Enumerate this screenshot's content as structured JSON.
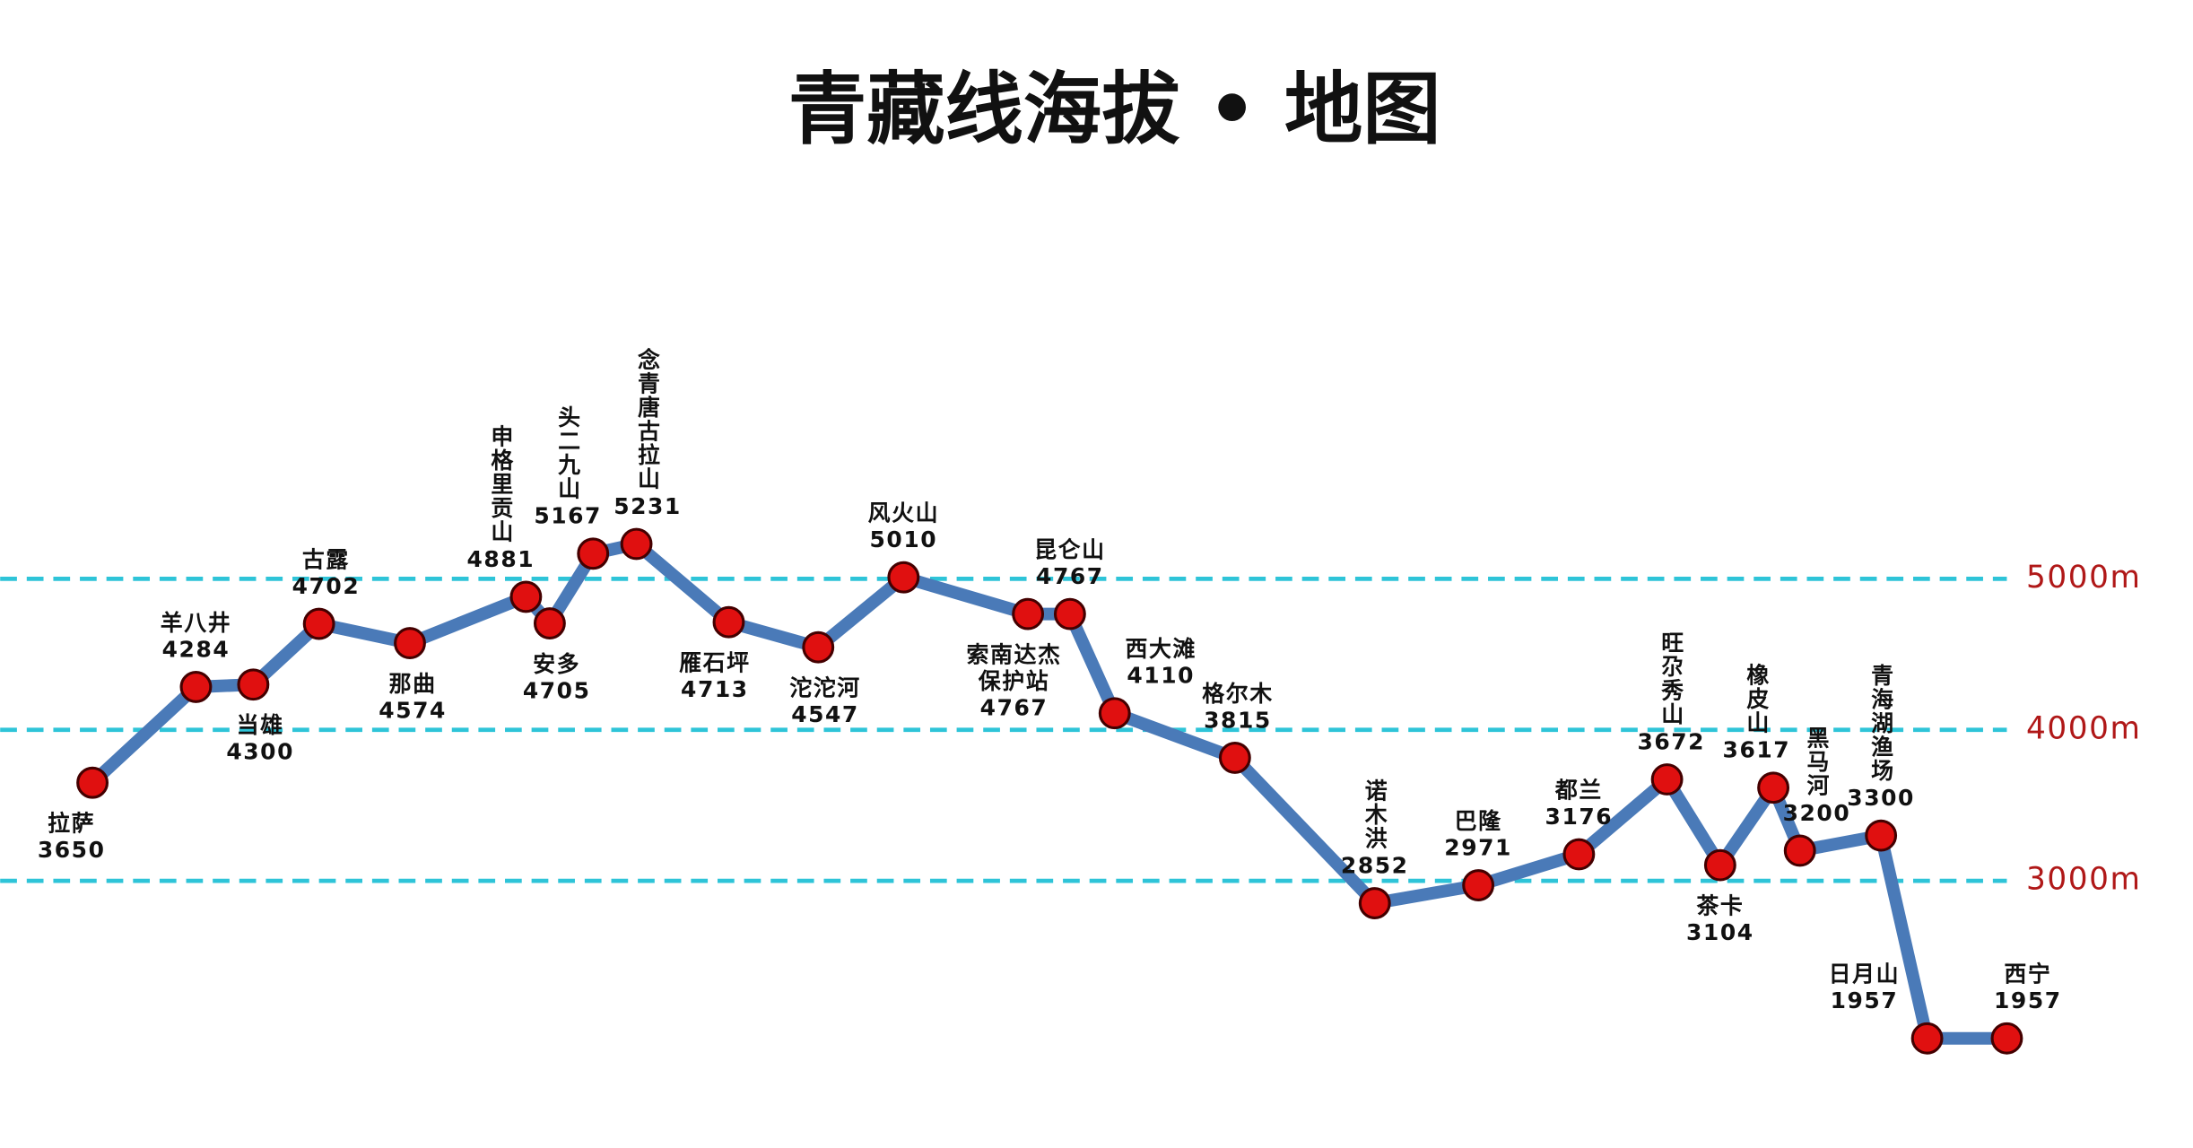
{
  "chart_data": {
    "type": "line",
    "title": "青藏线海拔 • 地图",
    "categories": [
      "拉萨",
      "羊八井",
      "当雄",
      "古露",
      "那曲",
      "申格里贡山",
      "安多",
      "头二九山",
      "念青唐古拉山",
      "雁石坪",
      "沱沱河",
      "风火山",
      "索南达杰保护站",
      "昆仑山",
      "西大滩",
      "格尔木",
      "诺木洪",
      "巴隆",
      "都兰",
      "旺尕秀山",
      "茶卡",
      "橡皮山",
      "黑马河",
      "青海湖渔场",
      "日月山",
      "西宁"
    ],
    "values": [
      3650,
      4284,
      4300,
      4702,
      4574,
      4881,
      4705,
      5167,
      5231,
      4713,
      4547,
      5010,
      4767,
      4767,
      4110,
      3815,
      2852,
      2971,
      3176,
      3672,
      3104,
      3617,
      3200,
      3300,
      1957,
      1957
    ],
    "color": "#4a7ab8",
    "marker_color": "#e01010",
    "ylim": [
      1231,
      8833
    ],
    "yticks": [
      {
        "value": 3000,
        "label": "3000m"
      },
      {
        "value": 4000,
        "label": "4000m"
      },
      {
        "value": 5000,
        "label": "5000m"
      }
    ],
    "grid": true,
    "grid_color": "#2ec4d8",
    "tick_color": "#b01818"
  }
}
